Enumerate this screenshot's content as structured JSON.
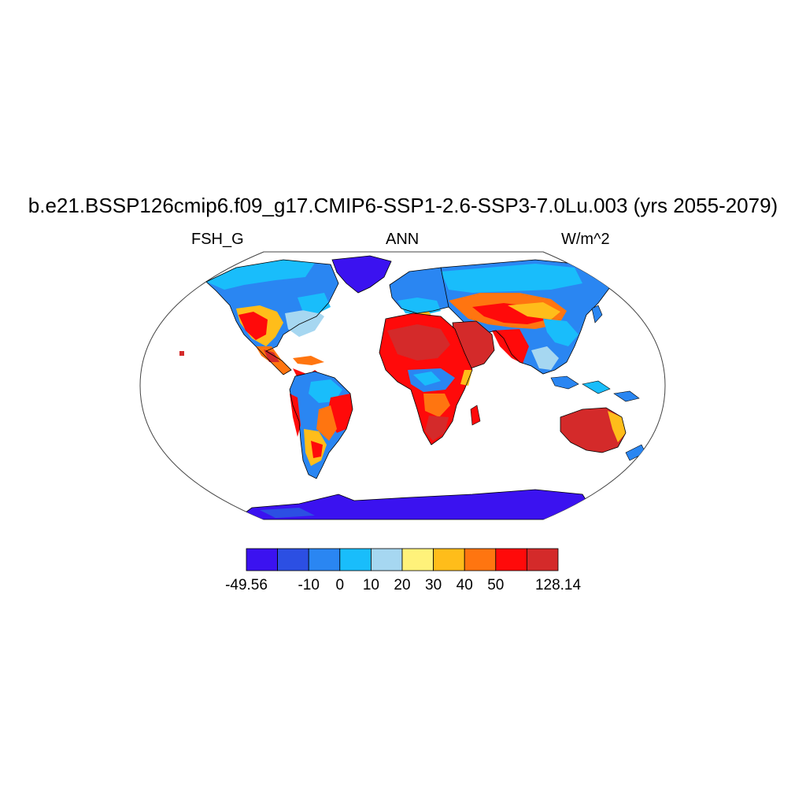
{
  "title": "b.e21.BSSP126cmip6.f09_g17.CMIP6-SSP1-2.6-SSP3-7.0Lu.003 (yrs 2055-2079)",
  "subtitle_left": "FSH_G",
  "subtitle_center": "ANN",
  "subtitle_right": "W/m^2",
  "colorbar": {
    "colors": [
      "#3b12f0",
      "#2c4fe3",
      "#2a86f2",
      "#19bdfb",
      "#a6d7f1",
      "#fff27a",
      "#ffbd1a",
      "#ff7510",
      "#ff0a0a",
      "#d42a2a"
    ],
    "labels": [
      "-49.56",
      "-10",
      "0",
      "10",
      "20",
      "30",
      "40",
      "50",
      "128.14"
    ],
    "label_positions": [
      0,
      2,
      3,
      4,
      5,
      6,
      7,
      8,
      10
    ]
  },
  "map": {
    "projection": "robinson",
    "ocean_color": "#ffffff",
    "coastline_color": "#000000"
  }
}
